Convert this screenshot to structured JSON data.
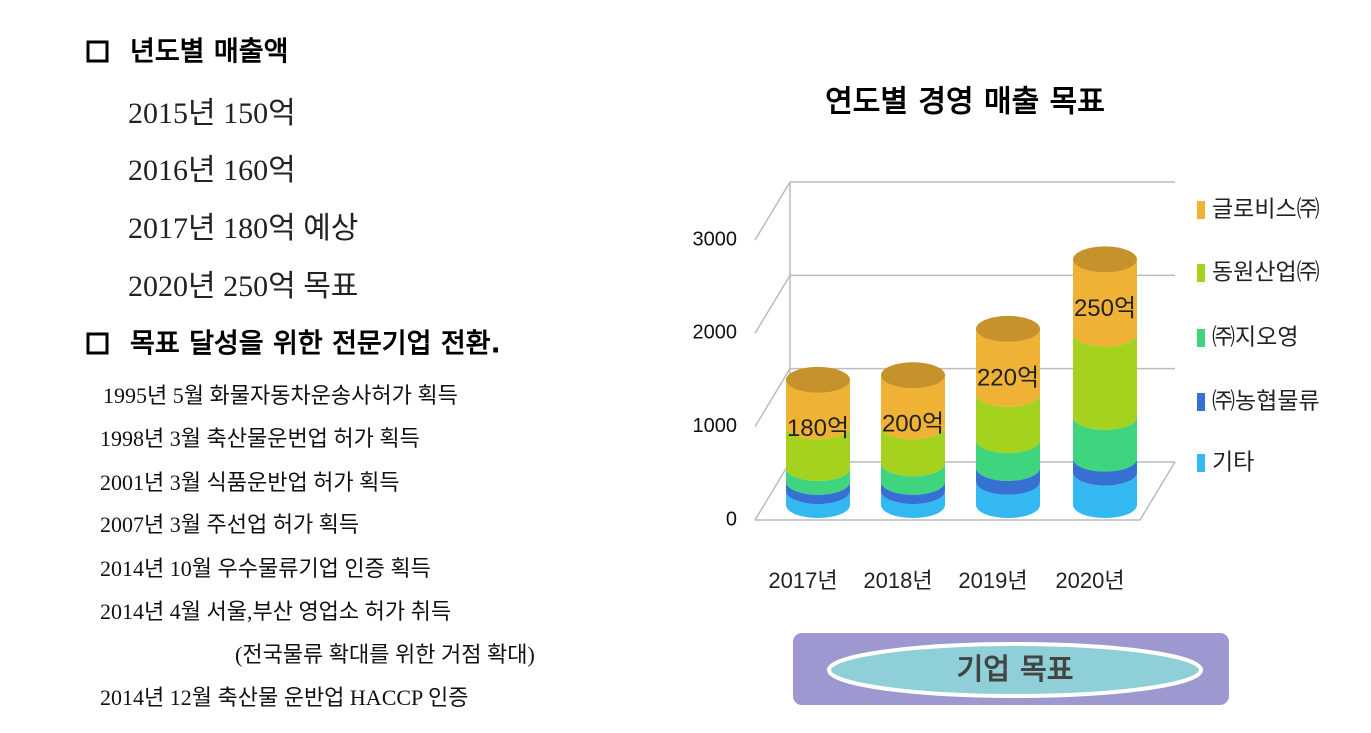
{
  "sections": [
    {
      "heading": "년도별 매출액",
      "items": [
        "2015년 150억",
        "2016년 160억",
        "2017년 180억 예상",
        "2020년 250억 목표"
      ]
    },
    {
      "heading": "목표 달성을 위한 전문기업 전환.",
      "items": [
        "1995년 5월 화물자동차운송사허가 획득",
        "1998년 3월 축산물운번업 허가 획득",
        "2001년 3월 식품운반업 허가 획득",
        "2007년 3월 주선업 허가 획득",
        "2014년 10월 우수물류기업 인증 획득",
        "2014년 4월 서울,부산 영업소 허가 취득",
        "(전국물류 확대를 위한 거점 확대)",
        "2014년 12월 축산물 운반업 HACCP 인증"
      ]
    }
  ],
  "chart_data": {
    "type": "bar",
    "stacked": true,
    "title": "연도별 경영 매출 목표",
    "categories": [
      "2017년",
      "2018년",
      "2019년",
      "2020년"
    ],
    "series": [
      {
        "name": "기타",
        "color": "#33b8f2",
        "values": [
          150,
          150,
          250,
          350
        ]
      },
      {
        "name": "㈜농협물류",
        "color": "#3570d2",
        "values": [
          100,
          100,
          150,
          150
        ]
      },
      {
        "name": "㈜지오영",
        "color": "#3fd47e",
        "values": [
          150,
          200,
          300,
          450
        ]
      },
      {
        "name": "동원산업㈜",
        "color": "#a4d21e",
        "values": [
          450,
          400,
          500,
          900
        ]
      },
      {
        "name": "글로비스㈜",
        "color": "#f0b234",
        "values": [
          500,
          550,
          700,
          800
        ]
      }
    ],
    "annotations": [
      "180억",
      "200억",
      "220억",
      "250억"
    ],
    "ylim": [
      0,
      3000
    ],
    "yticks": [
      0,
      1000,
      2000,
      3000
    ],
    "grid": true,
    "legend": "right"
  },
  "caption": "기업 목표"
}
